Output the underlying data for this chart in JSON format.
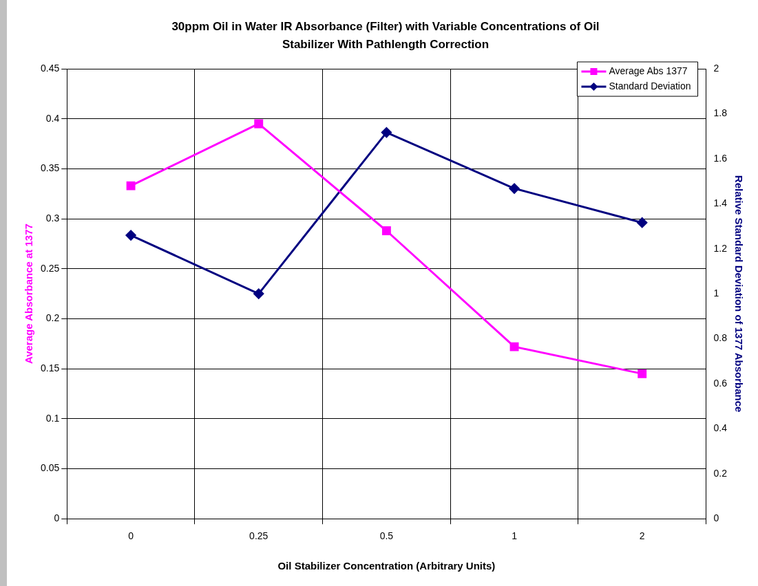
{
  "chart_data": {
    "type": "line",
    "title": "30ppm Oil in Water IR Absorbance (Filter) with Variable Concentrations of Oil Stabilizer With Pathlength Correction",
    "xlabel": "Oil Stabilizer Concentration (Arbitrary Units)",
    "ylabel": "Average Absorbance at 1377",
    "y2label": "Relative Standard Deviation of 1377 Absorbance",
    "categories": [
      "0",
      "0.25",
      "0.5",
      "1",
      "2"
    ],
    "series": [
      {
        "name": "Average Abs 1377",
        "color": "#ff00ff",
        "marker": "square",
        "values": [
          0.333,
          0.395,
          0.288,
          0.172,
          0.145
        ]
      },
      {
        "name": "Standard Deviation",
        "color": "#000080",
        "marker": "diamond",
        "axis": "y2",
        "values": [
          1.26,
          1.0,
          1.717,
          1.468,
          1.316
        ]
      }
    ],
    "ylim": [
      0,
      0.45
    ],
    "yticks": [
      0,
      0.05,
      0.1,
      0.15,
      0.2,
      0.25,
      0.3,
      0.35,
      0.4,
      0.45
    ],
    "y2lim": [
      0,
      2
    ],
    "y2ticks": [
      0,
      0.2,
      0.4,
      0.6,
      0.8,
      1,
      1.2,
      1.4,
      1.6,
      1.8,
      2
    ],
    "grid": true,
    "legend": "top right"
  }
}
